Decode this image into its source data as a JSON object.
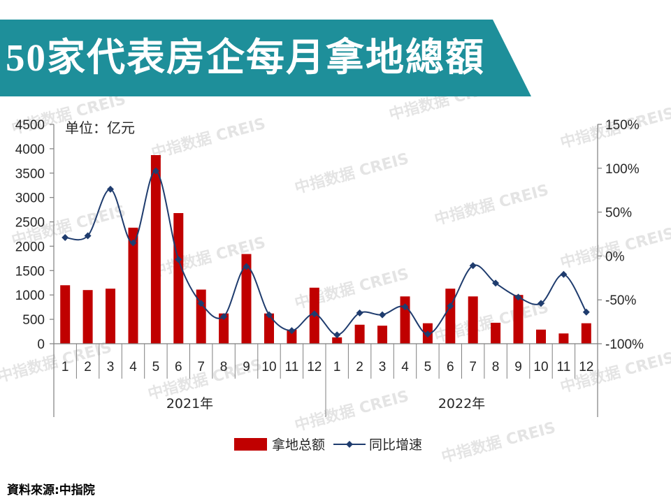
{
  "header": {
    "title": "50家代表房企每月拿地總額",
    "banner_color": "#1e8f9a"
  },
  "watermark": {
    "text": "中指数据 CREIS"
  },
  "chart_data": {
    "type": "bar",
    "unit_label": "单位：亿元",
    "categories": [
      "1",
      "2",
      "3",
      "4",
      "5",
      "6",
      "7",
      "8",
      "9",
      "10",
      "11",
      "12",
      "1",
      "2",
      "3",
      "4",
      "5",
      "6",
      "7",
      "8",
      "9",
      "10",
      "11",
      "12"
    ],
    "category_groups": [
      {
        "label": "2021年",
        "count": 12
      },
      {
        "label": "2022年",
        "count": 12
      }
    ],
    "series": [
      {
        "name": "拿地总额",
        "type": "bar",
        "axis": "left",
        "color": "#c00000",
        "values": [
          1200,
          1100,
          1130,
          2380,
          3870,
          2680,
          1110,
          620,
          1840,
          620,
          290,
          1150,
          130,
          390,
          370,
          970,
          420,
          1130,
          970,
          430,
          1000,
          290,
          210,
          420
        ]
      },
      {
        "name": "同比增速",
        "type": "line",
        "axis": "right",
        "color": "#1f3c6e",
        "marker": "diamond",
        "values": [
          21,
          23,
          76,
          15,
          97,
          -4,
          -54,
          -69,
          -12,
          -67,
          -85,
          -66,
          -90,
          -65,
          -67,
          -58,
          -89,
          -57,
          -11,
          -31,
          -47,
          -54,
          -21,
          -64
        ]
      }
    ],
    "y_left": {
      "range": [
        0,
        4500
      ],
      "step": 500,
      "ticks": [
        "0",
        "500",
        "1000",
        "1500",
        "2000",
        "2500",
        "3000",
        "3500",
        "4000",
        "4500"
      ]
    },
    "y_right": {
      "range": [
        -100,
        150
      ],
      "step": 50,
      "ticks": [
        "-100%",
        "-50%",
        "0%",
        "50%",
        "100%",
        "150%"
      ]
    },
    "legend": {
      "position": "bottom"
    },
    "grid": false,
    "axis_color": "#7f7f7f"
  },
  "footer": {
    "source": "資料來源:中指院"
  }
}
